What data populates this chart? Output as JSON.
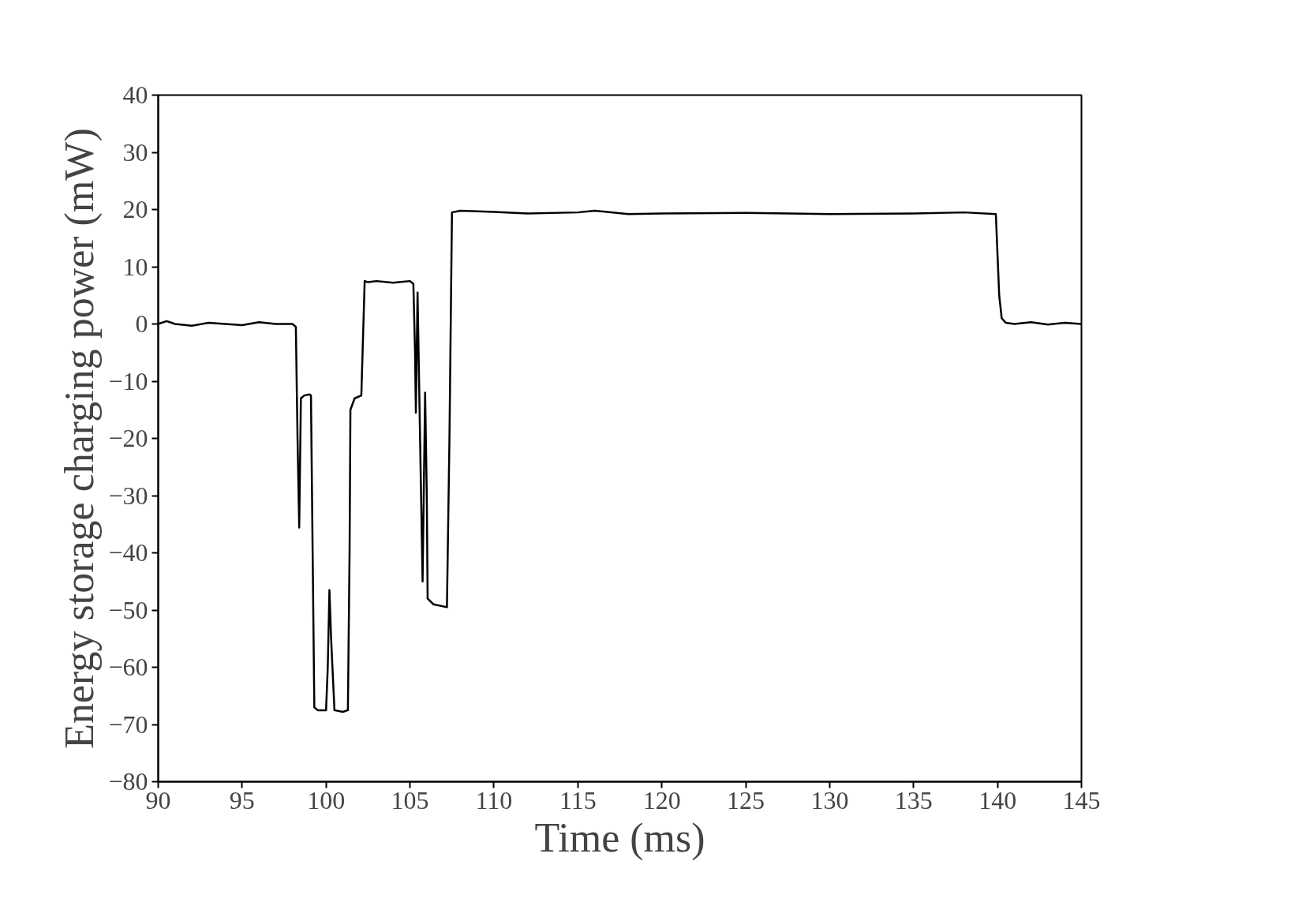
{
  "chart_data": {
    "type": "line",
    "xlabel": "Time (ms)",
    "ylabel": "Energy storage charging power (mW)",
    "xlim": [
      90,
      145
    ],
    "ylim": [
      -80,
      40
    ],
    "xticks": [
      90,
      95,
      100,
      105,
      110,
      115,
      120,
      125,
      130,
      135,
      140,
      145
    ],
    "yticks": [
      -80,
      -70,
      -60,
      -50,
      -40,
      -30,
      -20,
      -10,
      0,
      10,
      20,
      30,
      40
    ],
    "grid": false,
    "marker": "none",
    "line_style": "solid",
    "series": [
      {
        "color": "#000000",
        "x": [
          90,
          90.5,
          91,
          92,
          93,
          94,
          95,
          96,
          97,
          98,
          98.2,
          98.3,
          98.4,
          98.5,
          98.7,
          99.0,
          99.1,
          99.2,
          99.3,
          99.5,
          100.0,
          100.1,
          100.2,
          100.3,
          100.5,
          101.0,
          101.3,
          101.4,
          101.45,
          101.7,
          102.1,
          102.3,
          102.5,
          103,
          104,
          105,
          105.2,
          105.3,
          105.35,
          105.45,
          105.6,
          105.75,
          105.9,
          106.0,
          106.05,
          106.4,
          107.2,
          107.35,
          107.5,
          108,
          110,
          112,
          115,
          116,
          118,
          120,
          125,
          130,
          135,
          138,
          139.9,
          140.1,
          140.25,
          140.5,
          141,
          142,
          143,
          144,
          145
        ],
        "values": [
          0,
          0.5,
          0,
          -0.3,
          0.2,
          0,
          -0.2,
          0.3,
          0,
          0,
          -0.5,
          -20,
          -35.6,
          -13,
          -12.5,
          -12.3,
          -12.5,
          -40,
          -67,
          -67.5,
          -67.5,
          -60,
          -46.5,
          -55,
          -67.5,
          -67.8,
          -67.5,
          -40,
          -15,
          -13,
          -12.5,
          7.5,
          7.3,
          7.5,
          7.2,
          7.5,
          7,
          -5,
          -15.5,
          5.5,
          -20,
          -45,
          -12,
          -30,
          -48,
          -49,
          -49.5,
          -20,
          19.5,
          19.8,
          19.6,
          19.3,
          19.5,
          19.8,
          19.2,
          19.3,
          19.4,
          19.2,
          19.3,
          19.5,
          19.2,
          5,
          1,
          0.2,
          0,
          0.3,
          -0.1,
          0.2,
          0
        ]
      }
    ]
  }
}
